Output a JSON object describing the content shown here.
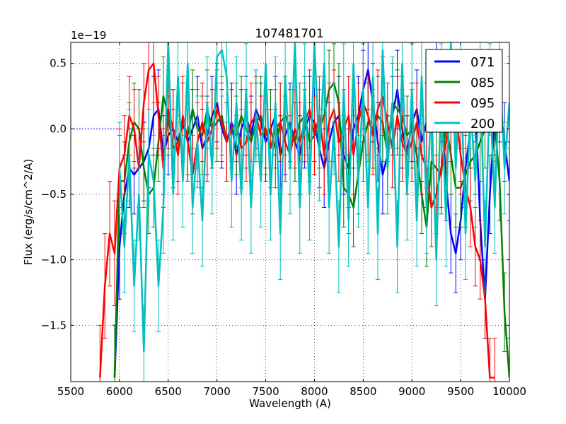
{
  "chart_data": {
    "type": "line",
    "title": "107481701",
    "xlabel": "Wavelength (A)",
    "ylabel": "Flux (erg/s/cm^2/A)",
    "offset_text": "1e−19",
    "xlim": [
      5500,
      10000
    ],
    "ylim": [
      -1.93,
      0.66
    ],
    "x_ticks": [
      5500,
      6000,
      6500,
      7000,
      7500,
      8000,
      8500,
      9000,
      9500,
      10000
    ],
    "x_tick_labels": [
      "5500",
      "6000",
      "6500",
      "7000",
      "7500",
      "8000",
      "8500",
      "9000",
      "9500",
      "10000"
    ],
    "y_ticks": [
      0.5,
      0.0,
      -0.5,
      -1.0,
      -1.5
    ],
    "y_tick_labels": [
      "0.5",
      "0.0",
      "−0.5",
      "−1.0",
      "−1.5"
    ],
    "grid": true,
    "legend_position": "top-right",
    "reference_line": {
      "y": 0.0,
      "x_range": [
        5500,
        6000
      ],
      "style": "dotted"
    },
    "series": [
      {
        "name": "071",
        "color": "#0000ff",
        "x": [
          5950,
          6000,
          6050,
          6100,
          6150,
          6200,
          6250,
          6300,
          6350,
          6400,
          6450,
          6500,
          6550,
          6600,
          6650,
          6700,
          6750,
          6800,
          6850,
          6900,
          6950,
          7000,
          7050,
          7100,
          7150,
          7200,
          7250,
          7300,
          7350,
          7400,
          7450,
          7500,
          7550,
          7600,
          7650,
          7700,
          7750,
          7800,
          7850,
          7900,
          7950,
          8000,
          8050,
          8100,
          8150,
          8200,
          8250,
          8300,
          8350,
          8400,
          8450,
          8500,
          8550,
          8600,
          8650,
          8700,
          8750,
          8800,
          8850,
          8900,
          8950,
          9000,
          9050,
          9100,
          9150,
          9200,
          9250,
          9300,
          9350,
          9400,
          9450,
          9500,
          9550,
          9600,
          9650,
          9700,
          9750,
          9800,
          9850,
          9900,
          9950,
          10000
        ],
        "y": [
          -1.9,
          -0.9,
          -0.5,
          -0.3,
          -0.35,
          -0.3,
          -0.25,
          -0.15,
          0.1,
          0.15,
          -0.2,
          -0.05,
          0.0,
          -0.1,
          0.05,
          -0.1,
          0.0,
          0.1,
          -0.15,
          -0.05,
          0.1,
          0.2,
          0.0,
          -0.1,
          0.05,
          -0.2,
          0.0,
          0.1,
          -0.05,
          0.15,
          0.05,
          -0.1,
          0.0,
          0.1,
          -0.2,
          -0.05,
          0.05,
          -0.1,
          -0.2,
          0.0,
          0.1,
          0.05,
          -0.15,
          -0.3,
          -0.1,
          0.05,
          0.1,
          -0.2,
          -0.3,
          0.0,
          0.1,
          0.3,
          0.45,
          0.2,
          -0.1,
          -0.35,
          -0.2,
          0.1,
          0.3,
          0.0,
          -0.2,
          0.05,
          0.15,
          -0.1,
          0.05,
          0.3,
          0.6,
          0.2,
          -0.4,
          -0.8,
          -0.95,
          -0.7,
          -0.3,
          0.0,
          0.2,
          -0.7,
          -1.3,
          -0.5,
          0.1,
          0.2,
          -0.1,
          -0.4
        ],
        "yerr": [
          0.4,
          0.4,
          0.3,
          0.3,
          0.3,
          0.3,
          0.3,
          0.3,
          0.3,
          0.3,
          0.3,
          0.3,
          0.3,
          0.3,
          0.3,
          0.3,
          0.3,
          0.3,
          0.3,
          0.3,
          0.3,
          0.3,
          0.3,
          0.3,
          0.3,
          0.3,
          0.3,
          0.3,
          0.3,
          0.3,
          0.3,
          0.3,
          0.3,
          0.3,
          0.3,
          0.3,
          0.3,
          0.3,
          0.3,
          0.3,
          0.3,
          0.3,
          0.3,
          0.3,
          0.3,
          0.3,
          0.3,
          0.3,
          0.3,
          0.3,
          0.3,
          0.3,
          0.3,
          0.3,
          0.3,
          0.3,
          0.3,
          0.3,
          0.3,
          0.3,
          0.3,
          0.3,
          0.3,
          0.3,
          0.3,
          0.3,
          0.3,
          0.3,
          0.3,
          0.3,
          0.3,
          0.3,
          0.3,
          0.3,
          0.3,
          0.3,
          0.3,
          0.3,
          0.3,
          0.3,
          0.3,
          0.3
        ]
      },
      {
        "name": "085",
        "color": "#008000",
        "x": [
          5950,
          6000,
          6050,
          6100,
          6150,
          6200,
          6250,
          6300,
          6350,
          6400,
          6450,
          6500,
          6550,
          6600,
          6650,
          6700,
          6750,
          6800,
          6850,
          6900,
          6950,
          7000,
          7050,
          7100,
          7150,
          7200,
          7250,
          7300,
          7350,
          7400,
          7450,
          7500,
          7550,
          7600,
          7650,
          7700,
          7750,
          7800,
          7850,
          7900,
          7950,
          8000,
          8050,
          8100,
          8150,
          8200,
          8250,
          8300,
          8350,
          8400,
          8450,
          8500,
          8550,
          8600,
          8650,
          8700,
          8750,
          8800,
          8850,
          8900,
          8950,
          9000,
          9050,
          9100,
          9150,
          9200,
          9250,
          9300,
          9350,
          9400,
          9450,
          9500,
          9550,
          9600,
          9650,
          9700,
          9750,
          9800,
          9850,
          9900,
          9950,
          10000
        ],
        "y": [
          -1.9,
          -0.4,
          -0.4,
          -0.1,
          0.05,
          0.0,
          -0.3,
          -0.5,
          -0.45,
          -0.1,
          0.25,
          0.1,
          -0.15,
          -0.1,
          0.05,
          -0.05,
          0.15,
          0.0,
          -0.05,
          0.15,
          0.0,
          0.05,
          0.1,
          -0.1,
          0.0,
          -0.05,
          0.1,
          0.0,
          -0.1,
          0.05,
          0.1,
          -0.05,
          0.0,
          -0.15,
          0.05,
          0.1,
          0.0,
          -0.1,
          0.05,
          0.1,
          -0.1,
          -0.05,
          0.0,
          0.1,
          0.3,
          0.35,
          0.2,
          -0.45,
          -0.5,
          -0.6,
          -0.35,
          -0.1,
          0.05,
          0.0,
          0.1,
          0.05,
          -0.2,
          0.2,
          0.15,
          0.1,
          -0.05,
          0.0,
          -0.2,
          -0.5,
          -0.75,
          -0.25,
          -0.3,
          -0.35,
          0.05,
          -0.2,
          -0.45,
          -0.45,
          -0.35,
          -0.25,
          -0.2,
          -0.1,
          0.0,
          0.3,
          0.05,
          -0.4,
          -1.4,
          -1.9
        ],
        "yerr": [
          0.4,
          0.35,
          0.3,
          0.3,
          0.3,
          0.3,
          0.3,
          0.3,
          0.3,
          0.3,
          0.3,
          0.3,
          0.3,
          0.3,
          0.3,
          0.3,
          0.3,
          0.3,
          0.3,
          0.3,
          0.3,
          0.3,
          0.3,
          0.3,
          0.3,
          0.3,
          0.3,
          0.3,
          0.3,
          0.3,
          0.3,
          0.3,
          0.3,
          0.3,
          0.3,
          0.3,
          0.3,
          0.3,
          0.3,
          0.3,
          0.3,
          0.3,
          0.3,
          0.3,
          0.3,
          0.3,
          0.3,
          0.3,
          0.3,
          0.3,
          0.3,
          0.3,
          0.3,
          0.3,
          0.3,
          0.3,
          0.3,
          0.3,
          0.3,
          0.3,
          0.3,
          0.3,
          0.3,
          0.3,
          0.3,
          0.3,
          0.3,
          0.3,
          0.3,
          0.3,
          0.3,
          0.3,
          0.3,
          0.3,
          0.3,
          0.3,
          0.3,
          0.3,
          0.3,
          0.3,
          0.3,
          0.3
        ]
      },
      {
        "name": "095",
        "color": "#ff0000",
        "x": [
          5800,
          5850,
          5900,
          5950,
          6000,
          6050,
          6100,
          6150,
          6200,
          6250,
          6300,
          6350,
          6400,
          6450,
          6500,
          6550,
          6600,
          6650,
          6700,
          6750,
          6800,
          6850,
          6900,
          6950,
          7000,
          7050,
          7100,
          7150,
          7200,
          7250,
          7300,
          7350,
          7400,
          7450,
          7500,
          7550,
          7600,
          7650,
          7700,
          7750,
          7800,
          7850,
          7900,
          7950,
          8000,
          8050,
          8100,
          8150,
          8200,
          8250,
          8300,
          8350,
          8400,
          8450,
          8500,
          8550,
          8600,
          8650,
          8700,
          8750,
          8800,
          8850,
          8900,
          8950,
          9000,
          9050,
          9100,
          9150,
          9200,
          9250,
          9300,
          9350,
          9400,
          9450,
          9500,
          9550,
          9600,
          9650,
          9700,
          9750,
          9800,
          9850
        ],
        "y": [
          -1.9,
          -1.2,
          -0.8,
          -0.95,
          -0.3,
          -0.2,
          0.1,
          0.0,
          -0.3,
          0.2,
          0.45,
          0.5,
          0.1,
          -0.3,
          0.15,
          0.0,
          -0.2,
          0.1,
          -0.1,
          -0.35,
          -0.1,
          0.05,
          -0.1,
          0.0,
          0.15,
          0.05,
          -0.1,
          0.0,
          0.05,
          -0.15,
          -0.1,
          0.05,
          0.1,
          -0.05,
          0.0,
          -0.15,
          0.0,
          0.05,
          -0.1,
          -0.2,
          0.0,
          -0.1,
          0.05,
          0.15,
          -0.05,
          0.1,
          -0.2,
          0.05,
          0.15,
          -0.1,
          0.0,
          0.1,
          -0.2,
          0.05,
          0.2,
          0.1,
          -0.05,
          0.15,
          0.25,
          0.05,
          -0.15,
          0.1,
          -0.1,
          -0.2,
          -0.1,
          0.05,
          -0.2,
          -0.3,
          -0.6,
          -0.5,
          -0.3,
          -0.1,
          0.05,
          0.15,
          -0.2,
          -0.45,
          -0.6,
          -0.9,
          -1.0,
          -1.3,
          -1.9,
          -1.9
        ],
        "yerr": [
          0.4,
          0.4,
          0.4,
          0.4,
          0.3,
          0.3,
          0.3,
          0.3,
          0.3,
          0.3,
          0.3,
          0.3,
          0.3,
          0.3,
          0.3,
          0.3,
          0.3,
          0.3,
          0.3,
          0.3,
          0.3,
          0.3,
          0.3,
          0.3,
          0.3,
          0.3,
          0.3,
          0.3,
          0.3,
          0.3,
          0.3,
          0.3,
          0.3,
          0.3,
          0.3,
          0.3,
          0.3,
          0.3,
          0.3,
          0.3,
          0.3,
          0.3,
          0.3,
          0.3,
          0.3,
          0.3,
          0.3,
          0.3,
          0.3,
          0.3,
          0.3,
          0.3,
          0.3,
          0.3,
          0.3,
          0.3,
          0.3,
          0.3,
          0.3,
          0.3,
          0.3,
          0.3,
          0.3,
          0.3,
          0.3,
          0.3,
          0.3,
          0.3,
          0.3,
          0.3,
          0.3,
          0.3,
          0.3,
          0.3,
          0.3,
          0.3,
          0.3,
          0.3,
          0.3,
          0.3,
          0.3,
          0.3
        ]
      },
      {
        "name": "200",
        "color": "#00bfbf",
        "x": [
          6000,
          6050,
          6100,
          6150,
          6200,
          6250,
          6300,
          6350,
          6400,
          6450,
          6500,
          6550,
          6600,
          6650,
          6700,
          6750,
          6800,
          6850,
          6900,
          6950,
          7000,
          7050,
          7100,
          7150,
          7200,
          7250,
          7300,
          7350,
          7400,
          7450,
          7500,
          7550,
          7600,
          7650,
          7700,
          7750,
          7800,
          7850,
          7900,
          7950,
          8000,
          8050,
          8100,
          8150,
          8200,
          8250,
          8300,
          8350,
          8400,
          8450,
          8500,
          8550,
          8600,
          8650,
          8700,
          8750,
          8800,
          8850,
          8900,
          8950,
          9000,
          9050,
          9100,
          9150,
          9200,
          9250,
          9300,
          9350,
          9400,
          9450,
          9500,
          9550,
          9600,
          9650,
          9700,
          9750,
          9800,
          9850,
          9900,
          9950,
          10000
        ],
        "y": [
          -0.3,
          -0.9,
          -0.2,
          -1.2,
          -0.5,
          -1.7,
          -0.2,
          -0.4,
          -1.2,
          -0.6,
          0.66,
          -0.5,
          0.4,
          -0.4,
          0.5,
          -0.6,
          -0.1,
          -0.7,
          0.2,
          -0.3,
          0.55,
          0.6,
          0.4,
          -0.4,
          0.2,
          -0.5,
          0.3,
          -0.6,
          0.1,
          -0.4,
          0.5,
          -0.5,
          0.2,
          -0.8,
          0.4,
          -0.3,
          0.66,
          -0.6,
          0.3,
          -0.5,
          0.66,
          -0.2,
          0.5,
          -0.6,
          0.0,
          -0.9,
          0.3,
          -0.7,
          0.5,
          -0.4,
          0.3,
          -0.6,
          0.4,
          -0.8,
          0.6,
          -0.3,
          0.2,
          -0.9,
          0.5,
          -0.5,
          0.3,
          -0.7,
          0.4,
          -0.6,
          0.2,
          -1.0,
          0.3,
          -0.7,
          0.66,
          -0.3,
          0.5,
          -0.8,
          0.2,
          -0.4,
          0.4,
          -0.9,
          0.3,
          -0.6,
          0.5,
          -0.3,
          0.2
        ],
        "yerr": [
          0.35,
          0.35,
          0.35,
          0.35,
          0.35,
          0.35,
          0.35,
          0.35,
          0.35,
          0.35,
          0.35,
          0.35,
          0.35,
          0.35,
          0.35,
          0.35,
          0.35,
          0.35,
          0.35,
          0.35,
          0.35,
          0.35,
          0.35,
          0.35,
          0.35,
          0.35,
          0.35,
          0.35,
          0.35,
          0.35,
          0.35,
          0.35,
          0.35,
          0.35,
          0.35,
          0.35,
          0.35,
          0.35,
          0.35,
          0.35,
          0.35,
          0.35,
          0.35,
          0.35,
          0.35,
          0.35,
          0.35,
          0.35,
          0.35,
          0.35,
          0.35,
          0.35,
          0.35,
          0.35,
          0.35,
          0.35,
          0.35,
          0.35,
          0.35,
          0.35,
          0.35,
          0.35,
          0.35,
          0.35,
          0.35,
          0.35,
          0.35,
          0.35,
          0.35,
          0.35,
          0.35,
          0.35,
          0.35,
          0.35,
          0.35,
          0.35,
          0.35,
          0.35,
          0.35,
          0.35,
          0.35
        ]
      }
    ]
  }
}
